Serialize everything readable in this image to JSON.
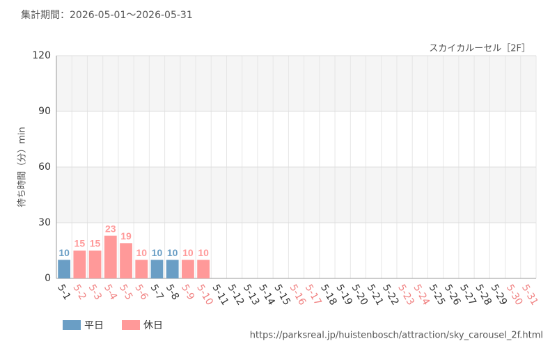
{
  "chart_data": {
    "type": "bar",
    "title": "集計期間：2026-05-01～2026-05-31",
    "subtitle": "スカイカルーセル［2F］",
    "y_label": "待ち時間（分）min",
    "source": "https://parksreal.jp/huistenbosch/attraction/sky_carousel_2f.html",
    "categories": [
      "5-1",
      "5-2",
      "5-3",
      "5-4",
      "5-5",
      "5-6",
      "5-7",
      "5-8",
      "5-9",
      "5-10",
      "5-11",
      "5-12",
      "5-13",
      "5-14",
      "5-15",
      "5-16",
      "5-17",
      "5-18",
      "5-19",
      "5-20",
      "5-21",
      "5-22",
      "5-23",
      "5-24",
      "5-25",
      "5-26",
      "5-27",
      "5-28",
      "5-29",
      "5-30",
      "5-31"
    ],
    "category_label_colors": [
      "#333",
      "#f08080",
      "#f08080",
      "#f08080",
      "#f08080",
      "#f08080",
      "#333",
      "#333",
      "#f08080",
      "#f08080",
      "#333",
      "#333",
      "#333",
      "#333",
      "#333",
      "#f08080",
      "#f08080",
      "#333",
      "#333",
      "#333",
      "#333",
      "#333",
      "#f08080",
      "#f08080",
      "#333",
      "#333",
      "#333",
      "#333",
      "#333",
      "#f08080",
      "#f08080"
    ],
    "series": [
      {
        "name": "平日",
        "color": "#6a9ec5",
        "values": [
          10,
          null,
          null,
          null,
          null,
          null,
          10,
          10,
          null,
          null,
          null,
          null,
          null,
          null,
          null,
          null,
          null,
          null,
          null,
          null,
          null,
          null,
          null,
          null,
          null,
          null,
          null,
          null,
          null,
          null,
          null
        ]
      },
      {
        "name": "休日",
        "color": "#ff9999",
        "values": [
          null,
          15,
          15,
          23,
          19,
          10,
          null,
          null,
          10,
          10,
          null,
          null,
          null,
          null,
          null,
          null,
          null,
          null,
          null,
          null,
          null,
          null,
          null,
          null,
          null,
          null,
          null,
          null,
          null,
          null,
          null
        ]
      }
    ],
    "ylim": [
      0,
      120
    ],
    "yticks": [
      0,
      30,
      60,
      90,
      120
    ],
    "grid": true,
    "legend": "bottom-left"
  }
}
